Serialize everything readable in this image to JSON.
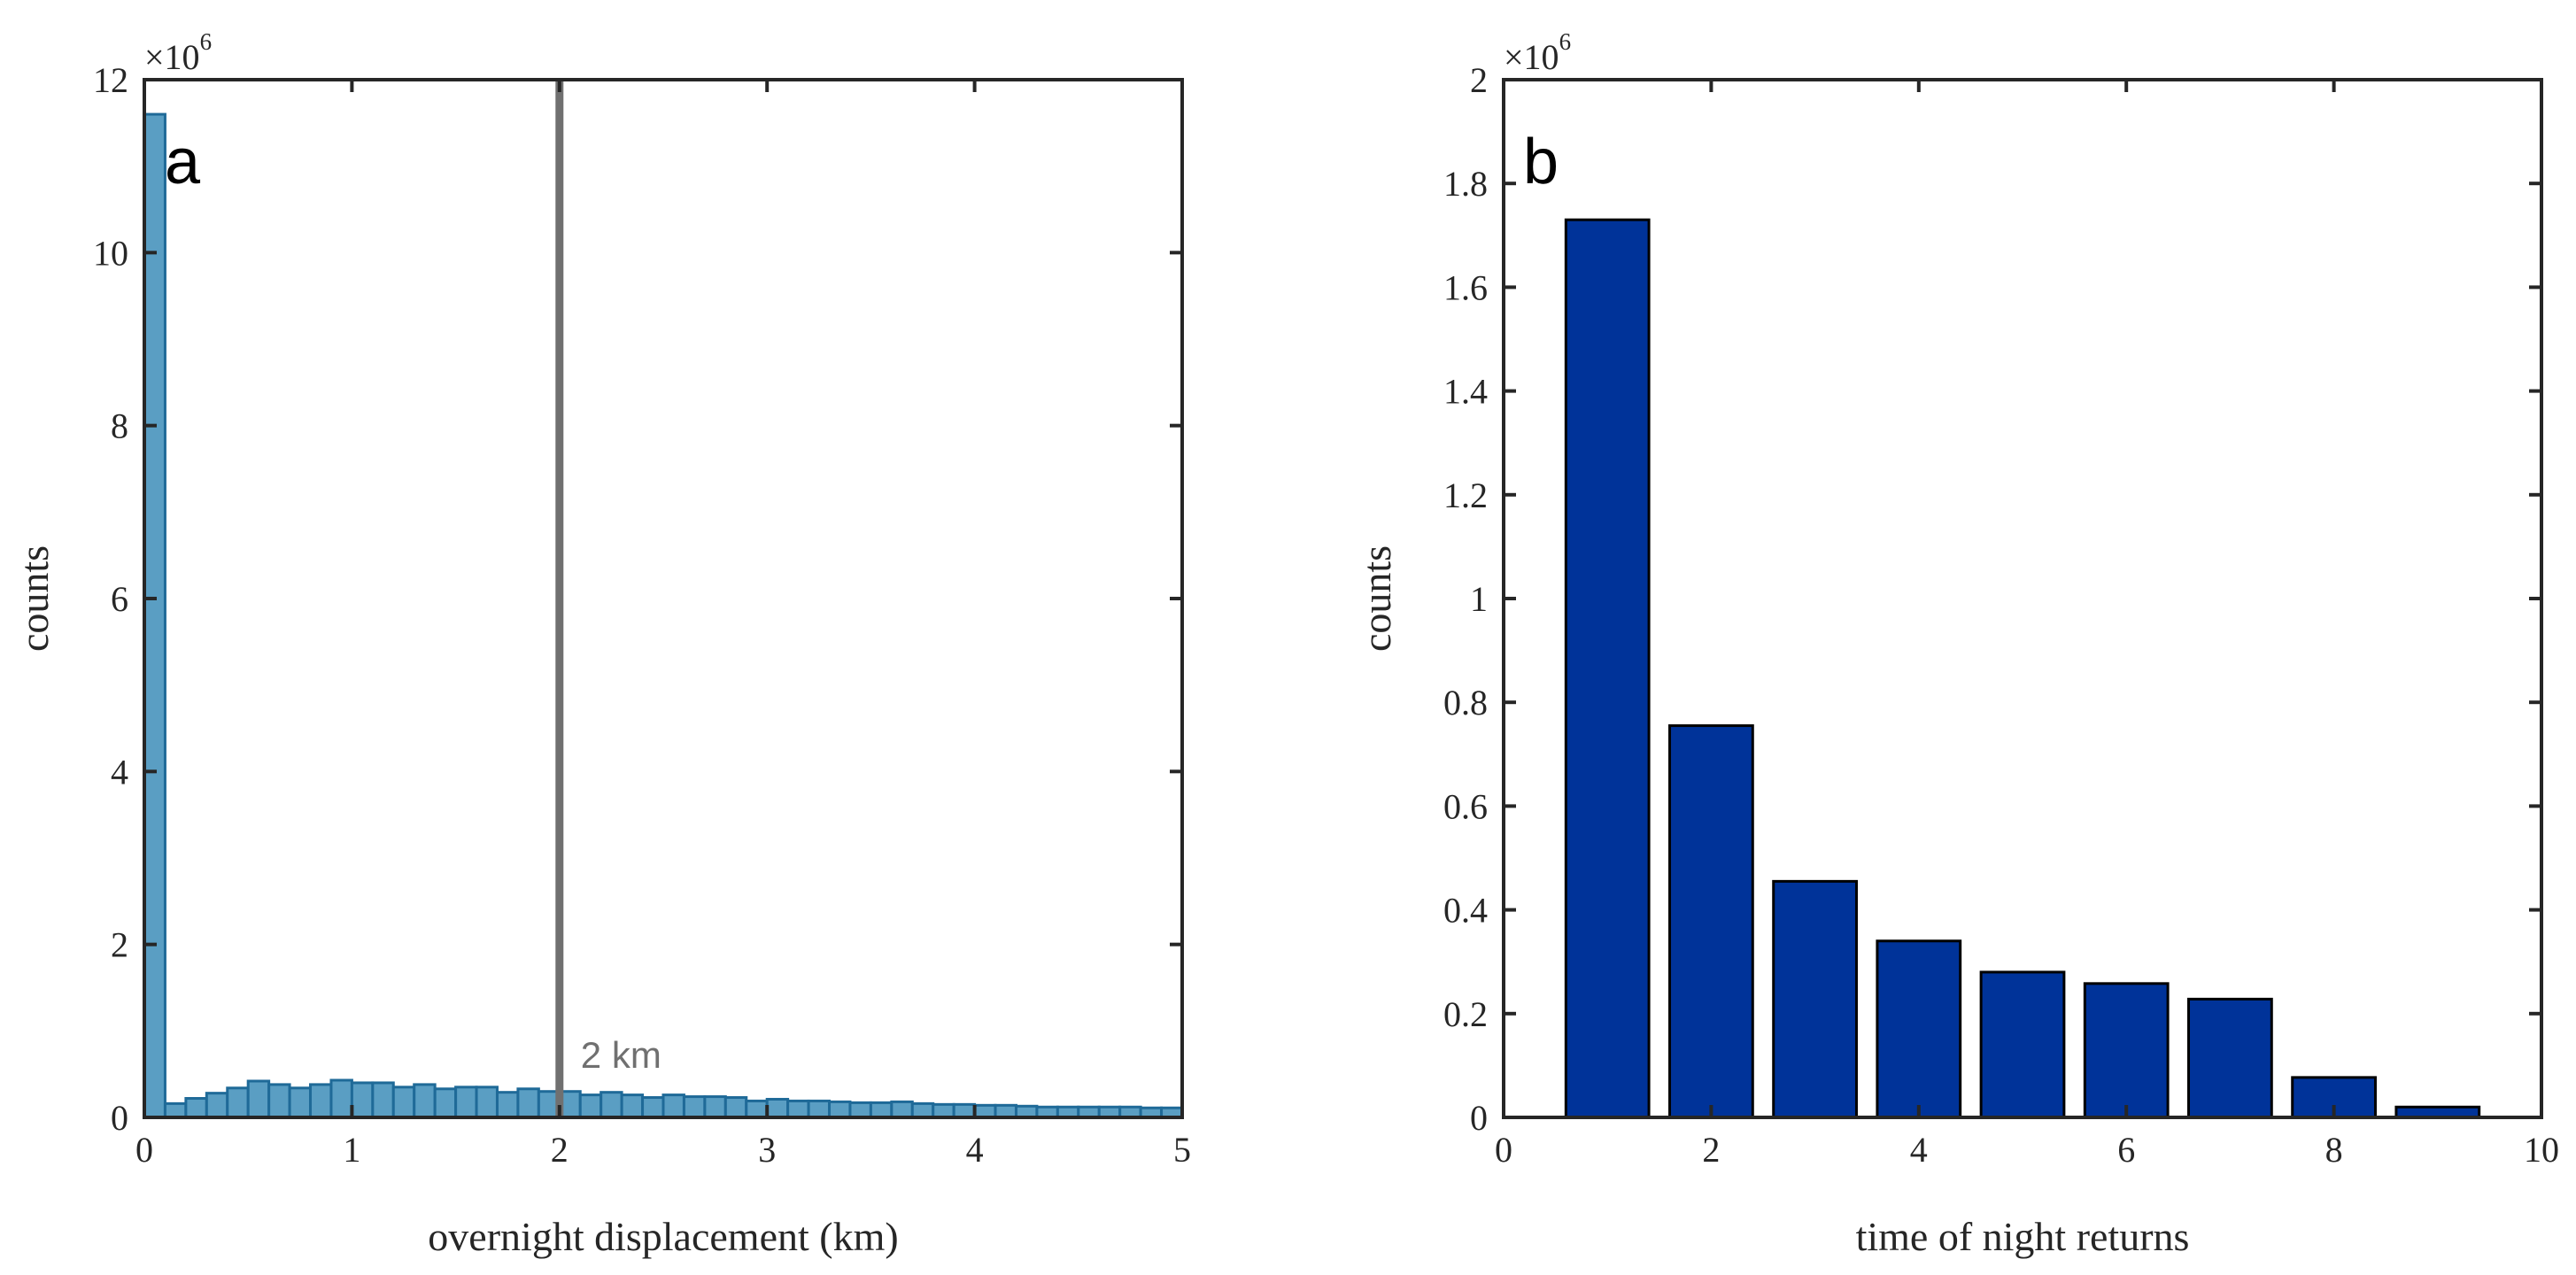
{
  "colors": {
    "hist_fill": "#5a9ec3",
    "hist_edge": "#1f6a98",
    "bar_fill": "#003399",
    "bar_edge": "#000000",
    "reference_line": "#707070",
    "axis": "#262626"
  },
  "chart_data": [
    {
      "type": "bar",
      "panel_label": "a",
      "title": "",
      "xlabel": "overnight displacement (km)",
      "ylabel": "counts",
      "xlim": [
        0,
        5
      ],
      "ylim": [
        0,
        12
      ],
      "y_multiplier_base": "×10",
      "y_multiplier_exp": "6",
      "xticks": [
        0,
        1,
        2,
        3,
        4,
        5
      ],
      "xtick_labels": [
        "0",
        "1",
        "2",
        "3",
        "4",
        "5"
      ],
      "yticks": [
        0,
        2,
        4,
        6,
        8,
        10,
        12
      ],
      "ytick_labels": [
        "0",
        "2",
        "4",
        "6",
        "8",
        "10",
        "12"
      ],
      "bin_width": 0.1,
      "bin_starts": [
        0,
        0.1,
        0.2,
        0.3,
        0.4,
        0.5,
        0.6,
        0.7,
        0.8,
        0.9,
        1.0,
        1.1,
        1.2,
        1.3,
        1.4,
        1.5,
        1.6,
        1.7,
        1.8,
        1.9,
        2.0,
        2.1,
        2.2,
        2.3,
        2.4,
        2.5,
        2.6,
        2.7,
        2.8,
        2.9,
        3.0,
        3.1,
        3.2,
        3.3,
        3.4,
        3.5,
        3.6,
        3.7,
        3.8,
        3.9,
        4.0,
        4.1,
        4.2,
        4.3,
        4.4,
        4.5,
        4.6,
        4.7,
        4.8,
        4.9
      ],
      "values": [
        11.6,
        0.16,
        0.22,
        0.28,
        0.34,
        0.42,
        0.38,
        0.34,
        0.38,
        0.43,
        0.4,
        0.4,
        0.35,
        0.38,
        0.33,
        0.35,
        0.35,
        0.29,
        0.33,
        0.3,
        0.3,
        0.26,
        0.29,
        0.26,
        0.23,
        0.26,
        0.24,
        0.24,
        0.23,
        0.19,
        0.21,
        0.19,
        0.19,
        0.18,
        0.17,
        0.17,
        0.18,
        0.16,
        0.15,
        0.15,
        0.14,
        0.14,
        0.13,
        0.12,
        0.12,
        0.12,
        0.12,
        0.12,
        0.11,
        0.11
      ],
      "reference_line": {
        "x": 2,
        "label": "2 km"
      }
    },
    {
      "type": "bar",
      "panel_label": "b",
      "title": "",
      "xlabel": "time of night returns",
      "ylabel": "counts",
      "xlim": [
        0,
        10
      ],
      "ylim": [
        0,
        2
      ],
      "y_multiplier_base": "×10",
      "y_multiplier_exp": "6",
      "xticks": [
        0,
        2,
        4,
        6,
        8,
        10
      ],
      "xtick_labels": [
        "0",
        "2",
        "4",
        "6",
        "8",
        "10"
      ],
      "yticks": [
        0,
        0.2,
        0.4,
        0.6,
        0.8,
        1,
        1.2,
        1.4,
        1.6,
        1.8,
        2
      ],
      "ytick_labels": [
        "0",
        "0.2",
        "0.4",
        "0.6",
        "0.8",
        "1",
        "1.2",
        "1.4",
        "1.6",
        "1.8",
        "2"
      ],
      "categories": [
        1,
        2,
        3,
        4,
        5,
        6,
        7,
        8,
        9
      ],
      "bar_width": 0.8,
      "values": [
        1.73,
        0.755,
        0.455,
        0.34,
        0.28,
        0.258,
        0.228,
        0.077,
        0.02
      ]
    }
  ]
}
